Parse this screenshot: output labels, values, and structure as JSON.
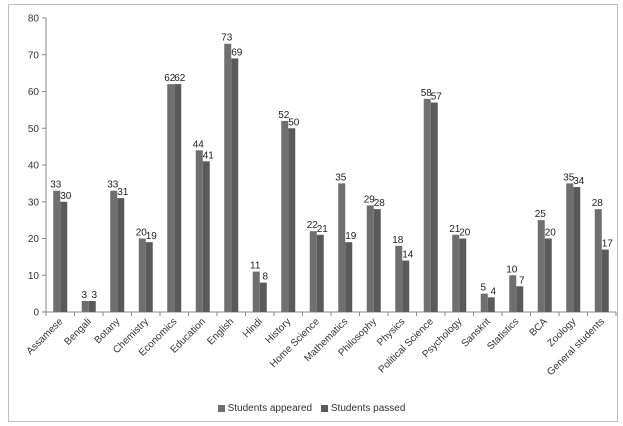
{
  "chart_data": {
    "type": "bar",
    "categories": [
      "Assamese",
      "Bengali",
      "Botany",
      "Chemistry",
      "Economics",
      "Education",
      "English",
      "Hindi",
      "History",
      "Home Science",
      "Mathematics",
      "Philosophy",
      "Physics",
      "Political Science",
      "Psychology",
      "Sanskrit",
      "Statistics",
      "BCA",
      "Zoology",
      "General students"
    ],
    "series": [
      {
        "name": "Students appeared",
        "values": [
          33,
          3,
          33,
          20,
          62,
          44,
          73,
          11,
          52,
          22,
          35,
          29,
          18,
          58,
          21,
          5,
          10,
          25,
          35,
          28
        ],
        "color": "#6f6f6f"
      },
      {
        "name": "Students passed",
        "values": [
          30,
          3,
          31,
          19,
          62,
          41,
          69,
          8,
          50,
          21,
          19,
          28,
          14,
          57,
          20,
          4,
          7,
          20,
          34,
          17
        ],
        "color": "#5a5a5a"
      }
    ],
    "ylim": [
      0,
      80
    ],
    "yticks": [
      0,
      10,
      20,
      30,
      40,
      50,
      60,
      70,
      80
    ],
    "grid": false,
    "legend_position": "bottom",
    "xlabel": "",
    "ylabel": "",
    "title": ""
  }
}
